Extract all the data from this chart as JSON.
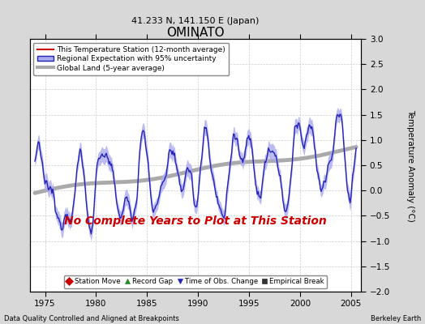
{
  "title": "OMINATO",
  "subtitle": "41.233 N, 141.150 E (Japan)",
  "xlabel_left": "Data Quality Controlled and Aligned at Breakpoints",
  "xlabel_right": "Berkeley Earth",
  "ylabel": "Temperature Anomaly (°C)",
  "xlim": [
    1973.5,
    2006.0
  ],
  "ylim": [
    -2.0,
    3.0
  ],
  "yticks": [
    -2,
    -1.5,
    -1,
    -0.5,
    0,
    0.5,
    1,
    1.5,
    2,
    2.5,
    3
  ],
  "xticks": [
    1975,
    1980,
    1985,
    1990,
    1995,
    2000,
    2005
  ],
  "fig_bg_color": "#d8d8d8",
  "plot_bg_color": "#ffffff",
  "regional_color": "#2222bb",
  "regional_fill_color": "#aaaaee",
  "global_color": "#aaaaaa",
  "station_color": "#cc0000",
  "no_data_text": "No Complete Years to Plot at This Station",
  "no_data_color": "#cc0000",
  "legend_labels": [
    "This Temperature Station (12-month average)",
    "Regional Expectation with 95% uncertainty",
    "Global Land (5-year average)"
  ],
  "marker_legend": [
    {
      "label": "Station Move",
      "color": "#cc0000",
      "marker": "D"
    },
    {
      "label": "Record Gap",
      "color": "#228B22",
      "marker": "^"
    },
    {
      "label": "Time of Obs. Change",
      "color": "#2222bb",
      "marker": "v"
    },
    {
      "label": "Empirical Break",
      "color": "#333333",
      "marker": "s"
    }
  ]
}
